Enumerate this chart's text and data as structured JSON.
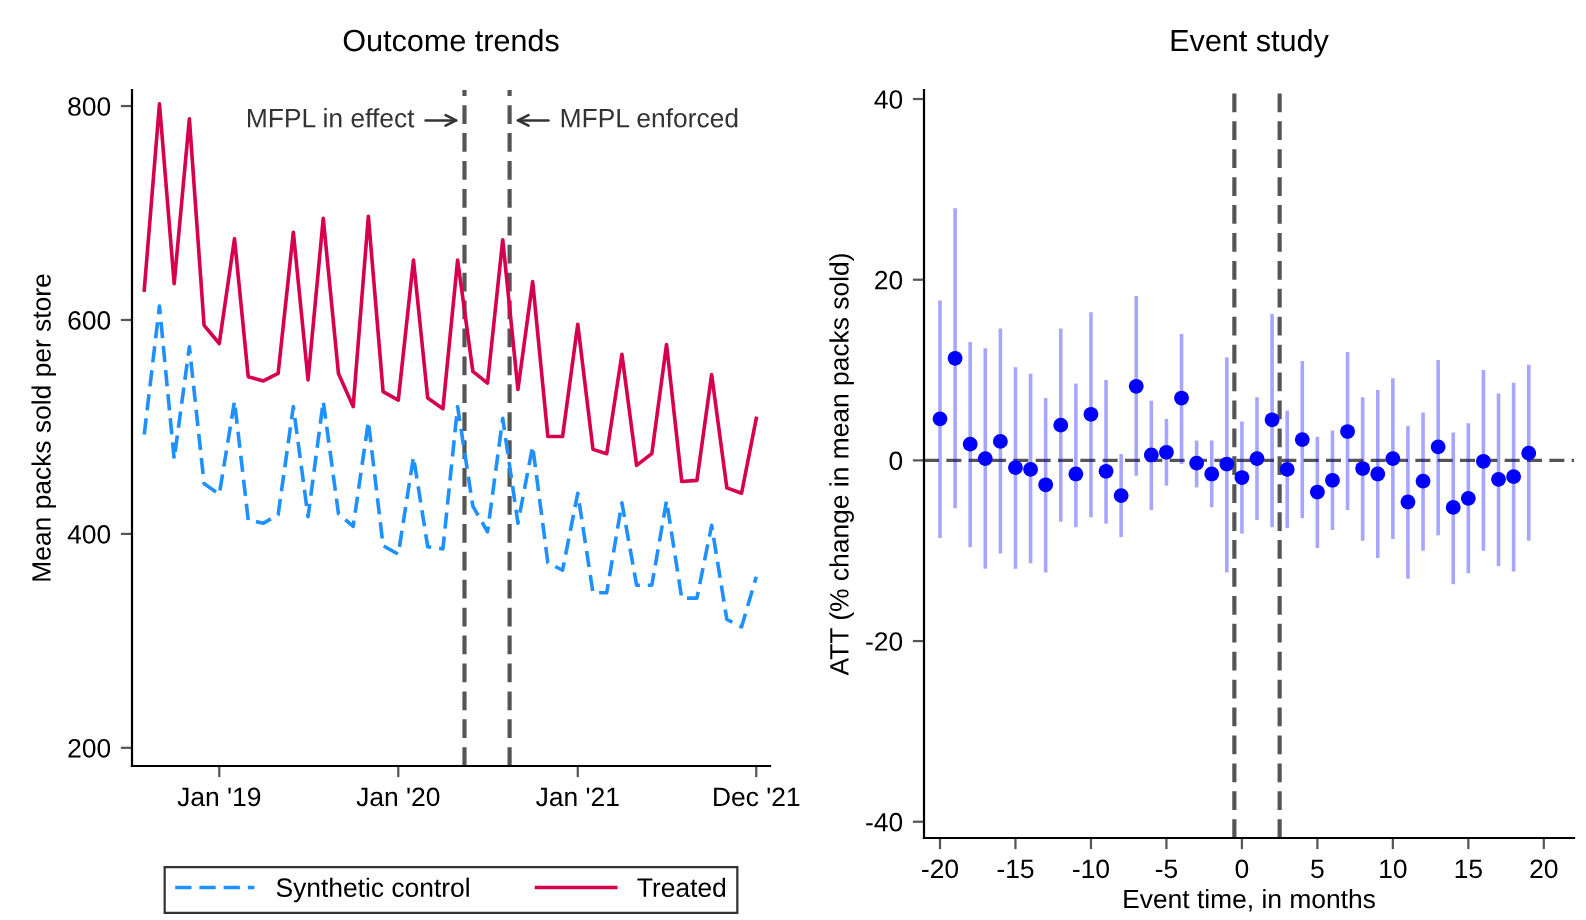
{
  "chart_data": [
    {
      "type": "line",
      "title": "Outcome trends",
      "ylabel": "Mean packs sold per store",
      "x": [
        "2018-08-01",
        "2018-09-01",
        "2018-10-01",
        "2018-11-01",
        "2018-12-01",
        "2019-01-01",
        "2019-02-01",
        "2019-03-01",
        "2019-04-01",
        "2019-05-01",
        "2019-06-01",
        "2019-07-01",
        "2019-08-01",
        "2019-09-01",
        "2019-10-01",
        "2019-11-01",
        "2019-12-01",
        "2020-01-01",
        "2020-02-01",
        "2020-03-01",
        "2020-04-01",
        "2020-05-01",
        "2020-06-01",
        "2020-07-01",
        "2020-08-01",
        "2020-09-01",
        "2020-10-01",
        "2020-11-01",
        "2020-12-01",
        "2021-01-01",
        "2021-02-01",
        "2021-03-01",
        "2021-04-01",
        "2021-05-01",
        "2021-06-01",
        "2021-07-01",
        "2021-08-01",
        "2021-09-01",
        "2021-10-01",
        "2021-11-01",
        "2021-12-01",
        "2021-12-31"
      ],
      "series": [
        {
          "name": "Synthetic control",
          "color": "#1e90ff",
          "line_style": "dashed",
          "values": [
            493,
            613,
            470,
            575,
            447,
            437,
            524,
            413,
            410,
            418,
            519,
            416,
            524,
            419,
            407,
            505,
            389,
            381,
            472,
            388,
            386,
            519,
            426,
            402,
            508,
            410,
            482,
            373,
            366,
            438,
            345,
            345,
            429,
            352,
            352,
            431,
            340,
            340,
            408,
            320,
            313,
            360
          ]
        },
        {
          "name": "Treated",
          "color": "#d6004f",
          "line_style": "solid",
          "values": [
            628,
            802,
            634,
            788,
            595,
            578,
            676,
            547,
            543,
            550,
            682,
            544,
            695,
            550,
            519,
            697,
            533,
            525,
            656,
            527,
            517,
            656,
            552,
            541,
            675,
            535,
            636,
            491,
            491,
            596,
            479,
            475,
            568,
            464,
            475,
            577,
            449,
            450,
            549,
            443,
            438,
            508
          ]
        }
      ],
      "xlim": [
        "2018-07-07",
        "2022-01-28"
      ],
      "xticks": [
        {
          "value": "2019-01-01",
          "label": "Jan '19"
        },
        {
          "value": "2020-01-01",
          "label": "Jan '20"
        },
        {
          "value": "2021-01-01",
          "label": "Jan '21"
        },
        {
          "value": "2021-12-31",
          "label": "Dec '21"
        }
      ],
      "ylim": [
        183,
        815
      ],
      "yticks": [
        200,
        400,
        600,
        800
      ],
      "ref_lines": [
        {
          "axis": "x",
          "value": "2020-05-15",
          "label": "MFPL in effect",
          "color": "#555555",
          "line_style": "dashed"
        },
        {
          "axis": "x",
          "value": "2020-08-15",
          "label": "MFPL enforced",
          "color": "#555555",
          "line_style": "dashed"
        }
      ],
      "grid": false,
      "legend": "bottom"
    },
    {
      "type": "scatter",
      "title": "Event study",
      "xlabel": "Event time, in months",
      "ylabel": "ATT (% change in mean packs sold)",
      "x": [
        -20,
        -19,
        -18,
        -17,
        -16,
        -15,
        -14,
        -13,
        -12,
        -11,
        -10,
        -9,
        -8,
        -7,
        -6,
        -5,
        -4,
        -3,
        -2,
        -1,
        0,
        1,
        2,
        3,
        4,
        5,
        6,
        7,
        8,
        9,
        10,
        11,
        12,
        13,
        14,
        15,
        16,
        17,
        18,
        19
      ],
      "series": [
        {
          "color": "#0000ff",
          "values": [
            4.6,
            11.3,
            1.8,
            0.2,
            2.1,
            -0.8,
            -1.0,
            -2.7,
            3.9,
            -1.5,
            5.1,
            -1.2,
            -3.9,
            8.2,
            0.6,
            0.9,
            6.9,
            -0.3,
            -1.5,
            -0.4,
            -1.9,
            0.2,
            4.5,
            -1.0,
            2.3,
            -3.5,
            -2.2,
            3.2,
            -0.9,
            -1.5,
            0.2,
            -4.6,
            -2.3,
            1.5,
            -5.2,
            -4.2,
            -0.1,
            -2.1,
            -1.8,
            0.8
          ],
          "errors": [
            [
              -8.6,
              17.7
            ],
            [
              -5.3,
              27.9
            ],
            [
              -9.6,
              13.1
            ],
            [
              -12.0,
              12.4
            ],
            [
              -10.3,
              14.6
            ],
            [
              -12.0,
              10.3
            ],
            [
              -11.4,
              9.6
            ],
            [
              -12.4,
              6.9
            ],
            [
              -6.8,
              14.6
            ],
            [
              -7.4,
              8.5
            ],
            [
              -6.3,
              16.4
            ],
            [
              -7.0,
              8.9
            ],
            [
              -8.5,
              0.7
            ],
            [
              -1.7,
              18.2
            ],
            [
              -5.5,
              6.6
            ],
            [
              -2.8,
              4.6
            ],
            [
              -0.4,
              14.0
            ],
            [
              -3.0,
              2.2
            ],
            [
              -5.2,
              2.2
            ],
            [
              -12.4,
              11.4
            ],
            [
              -8.1,
              4.3
            ],
            [
              -6.6,
              7.0
            ],
            [
              -7.4,
              16.2
            ],
            [
              -7.5,
              5.5
            ],
            [
              -6.4,
              11.0
            ],
            [
              -9.7,
              2.6
            ],
            [
              -7.7,
              3.3
            ],
            [
              -5.5,
              12.0
            ],
            [
              -8.9,
              7.0
            ],
            [
              -10.8,
              7.8
            ],
            [
              -8.7,
              9.1
            ],
            [
              -13.1,
              3.8
            ],
            [
              -10.0,
              5.3
            ],
            [
              -8.3,
              11.1
            ],
            [
              -13.7,
              3.1
            ],
            [
              -12.5,
              4.1
            ],
            [
              -10.0,
              10.0
            ],
            [
              -11.7,
              7.4
            ],
            [
              -12.3,
              8.6
            ],
            [
              -8.9,
              10.6
            ]
          ]
        }
      ],
      "xlim": [
        -21.06,
        22
      ],
      "xticks": [
        -20,
        -15,
        -10,
        -5,
        0,
        5,
        10,
        15,
        20
      ],
      "ylim": [
        -41.8,
        41
      ],
      "yticks": [
        -40,
        -20,
        0,
        20,
        40
      ],
      "ref_lines": [
        {
          "axis": "y",
          "value": 0,
          "color": "#555555",
          "line_style": "dashed"
        },
        {
          "axis": "x",
          "value": -0.5,
          "color": "#555555",
          "line_style": "dashed"
        },
        {
          "axis": "x",
          "value": 2.5,
          "color": "#555555",
          "line_style": "dashed"
        }
      ],
      "grid": false,
      "marker": "circle",
      "legend": false
    }
  ]
}
